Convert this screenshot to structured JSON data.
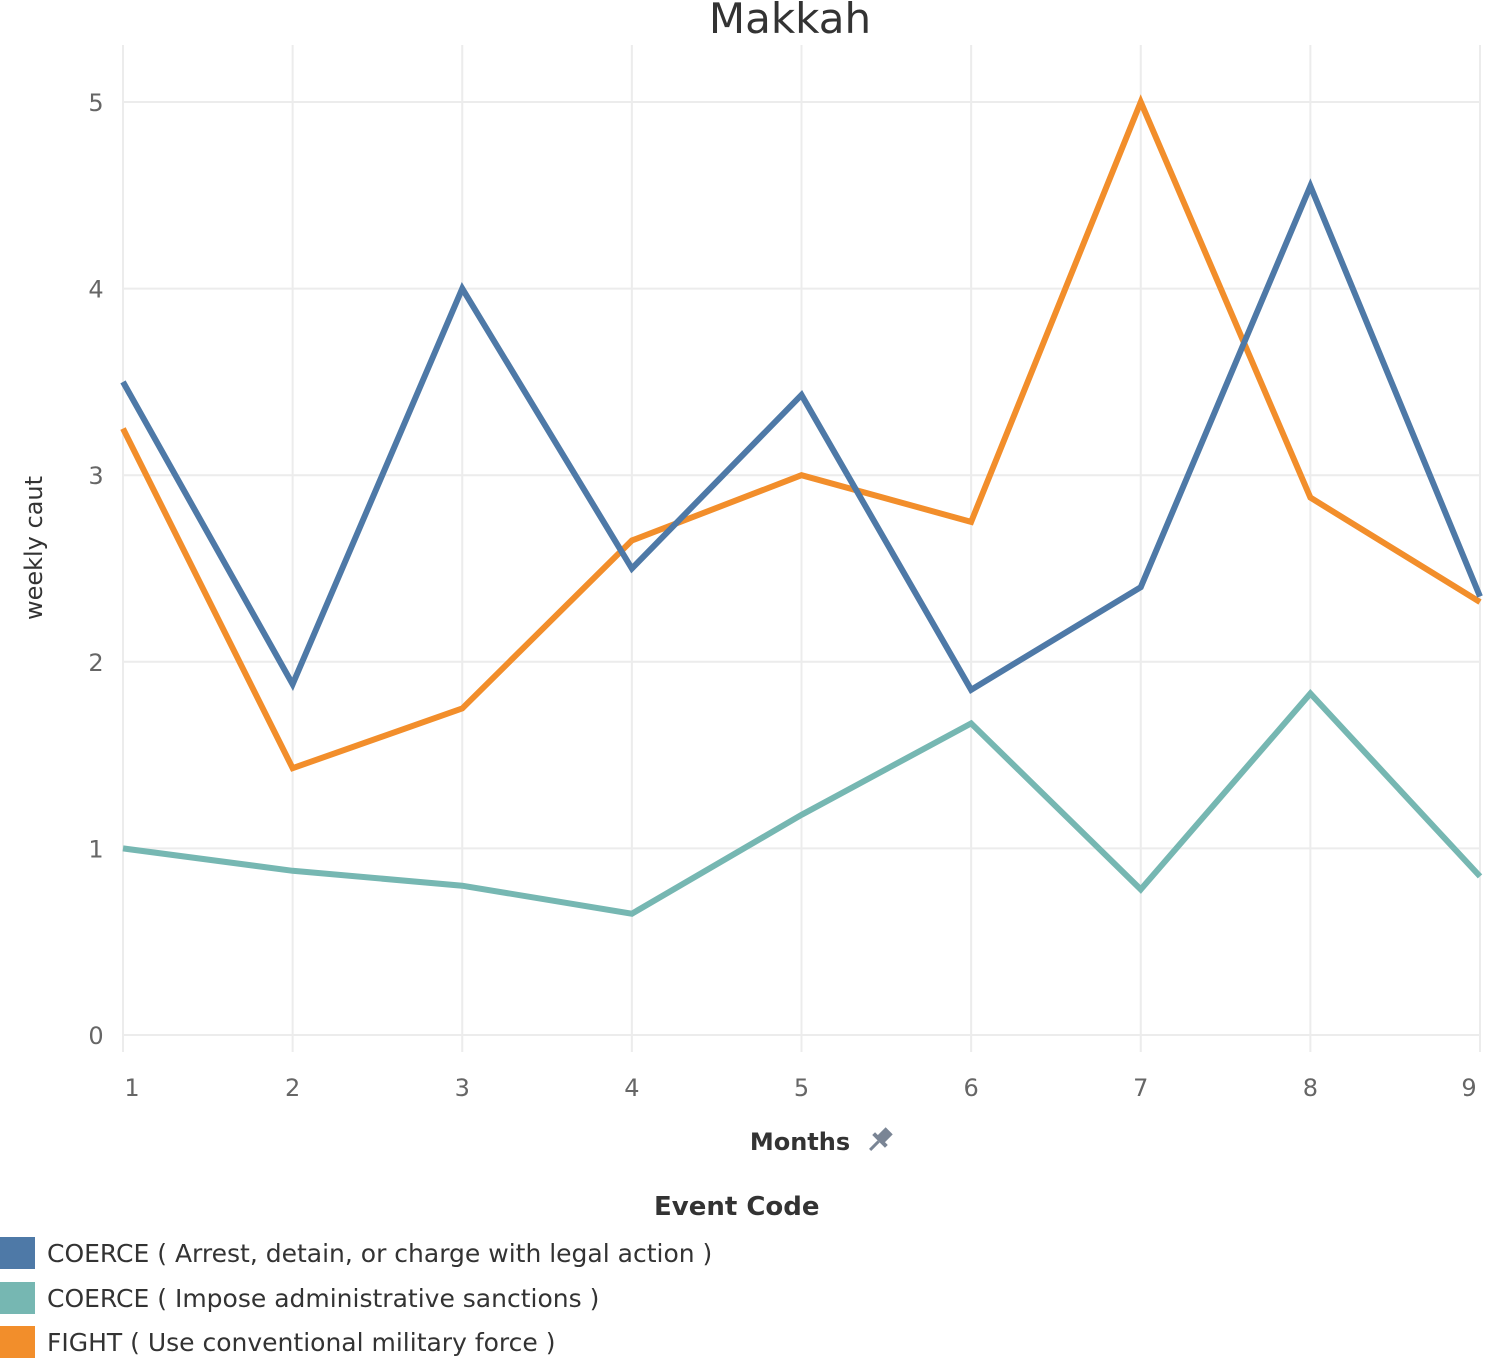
{
  "chart_data": {
    "type": "line",
    "title": "Makkah",
    "xlabel": "Months",
    "ylabel": "weekly caut",
    "x": [
      1,
      2,
      3,
      4,
      5,
      6,
      7,
      8,
      9
    ],
    "x_tick_labels": [
      "1",
      "2",
      "3",
      "4",
      "5",
      "6",
      "7",
      "8",
      "9"
    ],
    "y_ticks": [
      0,
      1,
      2,
      3,
      4,
      5
    ],
    "y_tick_labels": [
      "0",
      "1",
      "2",
      "3",
      "4",
      "5"
    ],
    "ylim": [
      0,
      5.28
    ],
    "grid": true,
    "legend_title": "Event Code",
    "legend_position": "bottom-left",
    "series": [
      {
        "name": "COERCE ( Arrest, detain, or charge with legal action )",
        "color": "#4e79a7",
        "values": [
          3.5,
          1.88,
          4.0,
          2.5,
          3.43,
          1.85,
          2.4,
          4.55,
          2.35
        ]
      },
      {
        "name": "COERCE ( Impose administrative sanctions )",
        "color": "#76b7b2",
        "values": [
          1.0,
          0.88,
          0.8,
          0.65,
          1.18,
          1.67,
          0.78,
          1.83,
          0.85
        ]
      },
      {
        "name": "FIGHT ( Use conventional military force )",
        "color": "#f28e2b",
        "values": [
          3.25,
          1.43,
          1.75,
          2.65,
          3.0,
          2.75,
          5.0,
          2.88,
          2.32
        ]
      }
    ]
  }
}
